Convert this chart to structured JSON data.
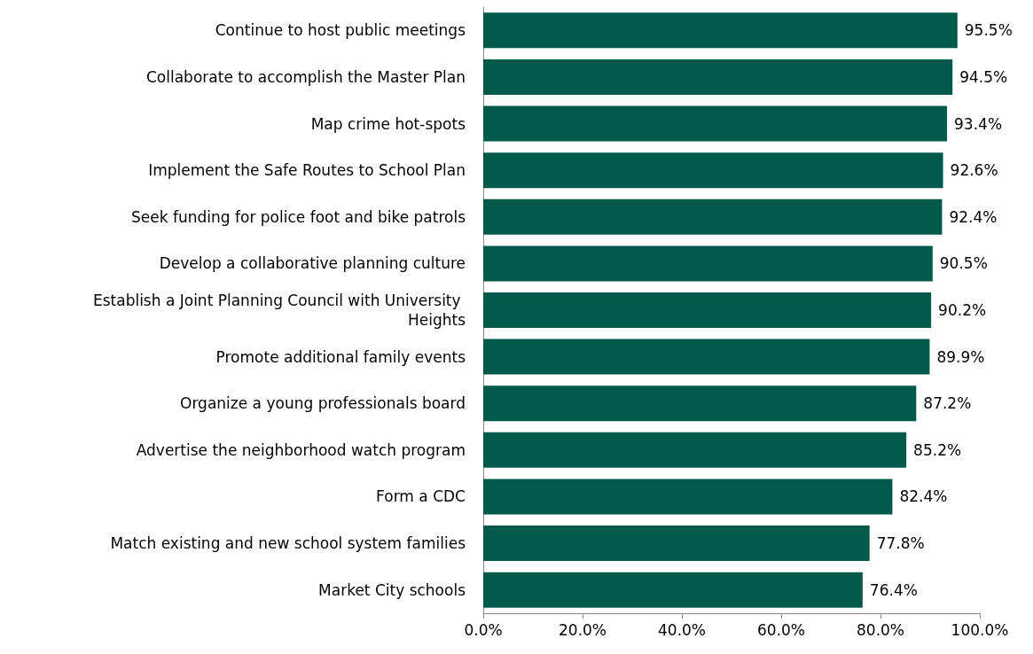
{
  "chart_data": {
    "type": "bar",
    "orientation": "horizontal",
    "categories": [
      "Continue to host public meetings",
      "Collaborate to accomplish the Master Plan",
      "Map crime hot-spots",
      "Implement the Safe Routes to School Plan",
      "Seek funding for police foot and bike patrols",
      "Develop a collaborative planning culture",
      "Establish a Joint Planning Council with University Heights",
      "Promote additional family events",
      "Organize a young professionals board",
      "Advertise the neighborhood watch program",
      "Form a CDC",
      "Match existing and new school system families",
      "Market City schools"
    ],
    "values": [
      95.5,
      94.5,
      93.4,
      92.6,
      92.4,
      90.5,
      90.2,
      89.9,
      87.2,
      85.2,
      82.4,
      77.8,
      76.4
    ],
    "value_labels": [
      "95.5%",
      "94.5%",
      "93.4%",
      "92.6%",
      "92.4%",
      "90.5%",
      "90.2%",
      "89.9%",
      "87.2%",
      "85.2%",
      "82.4%",
      "77.8%",
      "76.4%"
    ],
    "color": "#005a4c",
    "xlim": [
      0,
      100
    ],
    "xticks": [
      {
        "value": 0,
        "label": "0.0%"
      },
      {
        "value": 20,
        "label": "20.0%"
      },
      {
        "value": 40,
        "label": "40.0%"
      },
      {
        "value": 60,
        "label": "60.0%"
      },
      {
        "value": 80,
        "label": "80.0%"
      },
      {
        "value": 100,
        "label": "100.0%"
      }
    ],
    "grid": false
  }
}
